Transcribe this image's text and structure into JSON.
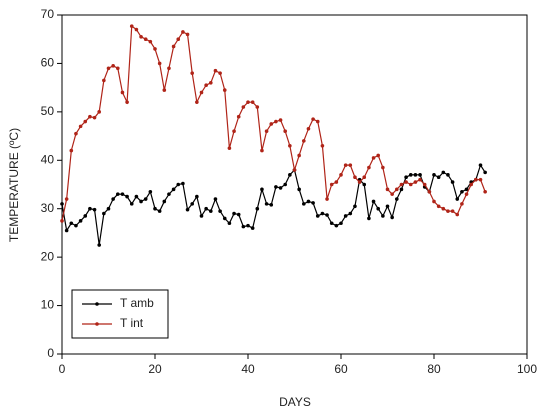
{
  "chart_data": {
    "type": "line",
    "xlabel": "DAYS",
    "ylabel": "TEMPERATURE (ºC)",
    "x": [
      0,
      1,
      2,
      3,
      4,
      5,
      6,
      7,
      8,
      9,
      10,
      11,
      12,
      13,
      14,
      15,
      16,
      17,
      18,
      19,
      20,
      21,
      22,
      23,
      24,
      25,
      26,
      27,
      28,
      29,
      30,
      31,
      32,
      33,
      34,
      35,
      36,
      37,
      38,
      39,
      40,
      41,
      42,
      43,
      44,
      45,
      46,
      47,
      48,
      49,
      50,
      51,
      52,
      53,
      54,
      55,
      56,
      57,
      58,
      59,
      60,
      61,
      62,
      63,
      64,
      65,
      66,
      67,
      68,
      69,
      70,
      71,
      72,
      73,
      74,
      75,
      76,
      77,
      78,
      79,
      80,
      81,
      82,
      83,
      84,
      85,
      86,
      87,
      88,
      89,
      90,
      91
    ],
    "series": [
      {
        "name": "T amb",
        "color": "#000000",
        "values": [
          31,
          25.5,
          27,
          26.5,
          27.5,
          28.5,
          30,
          29.8,
          22.5,
          29,
          30,
          32,
          33,
          33,
          32.5,
          31,
          32.5,
          31.5,
          32,
          33.5,
          30,
          29.5,
          31.5,
          33,
          34,
          35,
          35.2,
          29.8,
          31,
          32.5,
          28.5,
          30,
          29.5,
          32,
          29.5,
          28,
          27,
          29,
          28.8,
          26.3,
          26.5,
          26,
          30,
          34,
          31,
          30.8,
          34.5,
          34.3,
          35,
          37,
          38,
          34,
          31,
          31.5,
          31.2,
          28.5,
          29,
          28.7,
          27,
          26.5,
          27,
          28.5,
          29,
          30.5,
          36,
          35,
          28,
          31.5,
          30,
          28.5,
          30.5,
          28.2,
          32,
          34,
          36.5,
          37,
          37,
          37,
          34.5,
          33.5,
          37,
          36.5,
          37.5,
          37,
          35.5,
          32,
          33.5,
          34,
          35.5,
          36,
          39,
          37.5
        ]
      },
      {
        "name": "T int",
        "color": "#b02418",
        "values": [
          27.5,
          32,
          42,
          45.5,
          47,
          48,
          49,
          48.8,
          50,
          56.5,
          59,
          59.5,
          59,
          54,
          52,
          67.7,
          67,
          65.5,
          65,
          64.5,
          63,
          60,
          54.5,
          59,
          63.5,
          65,
          66.5,
          66,
          58,
          52,
          54,
          55.5,
          56,
          58.5,
          58,
          54.5,
          42.5,
          46,
          49,
          51,
          52,
          52,
          51,
          42,
          46,
          47.5,
          48,
          48.3,
          46,
          43,
          38,
          41,
          44,
          46.5,
          48.5,
          48,
          43,
          32,
          35,
          35.5,
          37,
          39,
          39,
          36.5,
          35.5,
          36.5,
          38.5,
          40.5,
          41,
          38.5,
          34,
          33,
          34,
          35,
          35.5,
          35,
          35.5,
          36,
          35,
          33.5,
          31.5,
          30.5,
          30,
          29.5,
          29.5,
          28.8,
          31,
          33,
          35,
          36,
          36,
          33.5
        ]
      }
    ],
    "xlim": [
      0,
      100
    ],
    "xticks": [
      0,
      20,
      40,
      60,
      80,
      100
    ],
    "ylim": [
      0,
      70
    ],
    "yticks": [
      0,
      10,
      20,
      30,
      40,
      50,
      60,
      70
    ],
    "legend": "lower left",
    "grid": false
  }
}
